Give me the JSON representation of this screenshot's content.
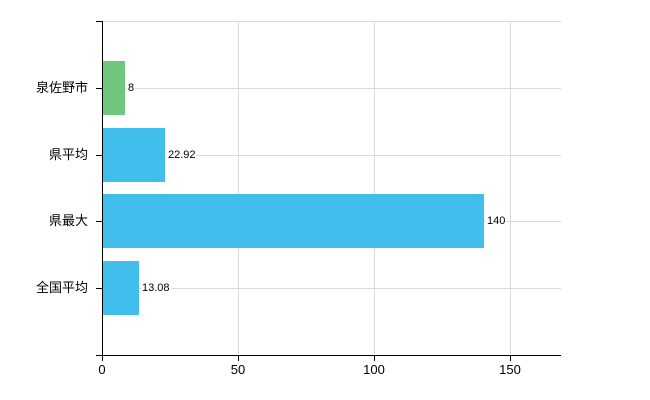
{
  "chart_data": {
    "type": "bar",
    "orientation": "horizontal",
    "title": "",
    "xlabel": "",
    "ylabel": "",
    "categories": [
      "泉佐野市",
      "県平均",
      "県最大",
      "全国平均"
    ],
    "values": [
      8,
      22.92,
      140,
      13.08
    ],
    "value_labels": [
      "8",
      "22.92",
      "140",
      "13.08"
    ],
    "bar_colors": [
      "#70c67c",
      "#41beec",
      "#41beec",
      "#41beec"
    ],
    "x_ticks": [
      0,
      50,
      100,
      150
    ],
    "x_tick_labels": [
      "0",
      "50",
      "100",
      "150"
    ],
    "xlim": [
      0,
      168.4
    ],
    "grid": true,
    "legend": false,
    "colors": {
      "green_bar": "#70c67c",
      "blue_bar": "#41beec",
      "gridline": "#d9d9d9",
      "axis": "#000000",
      "text": "#000000",
      "background": "#ffffff"
    }
  }
}
